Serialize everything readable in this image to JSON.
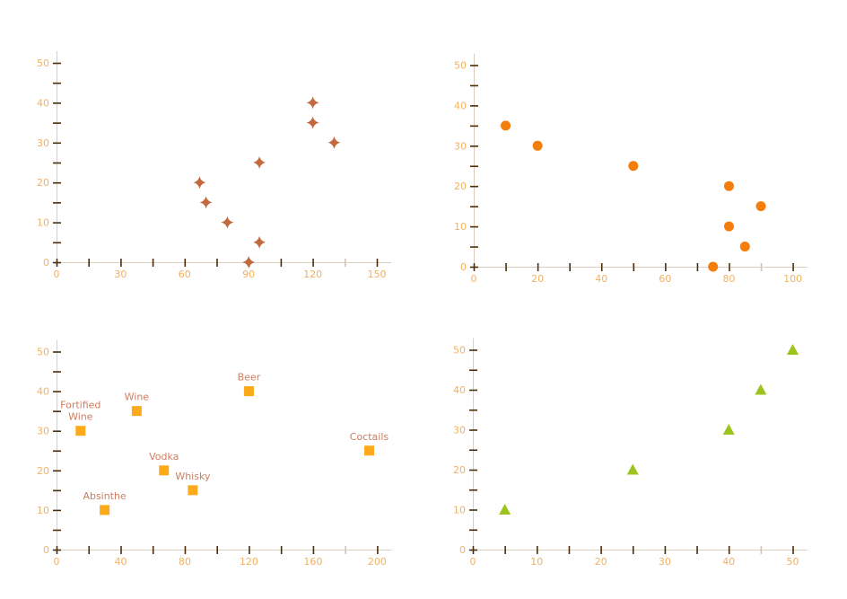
{
  "page": {
    "background": "#ffffff"
  },
  "colors": {
    "axis_line": "#dbcfc4",
    "tick": "#4b2e09",
    "tick_faded": "#cdc3b8",
    "tick_label": "#f2b161",
    "point_label": "#cd7e62",
    "star_marker": "#c2693f",
    "circle_marker": "#f57d0b",
    "square_marker": "#fcaa1a",
    "triangle_marker": "#9cc41c"
  },
  "chart_data": [
    {
      "id": "top-left",
      "type": "scatter",
      "marker": "star4",
      "marker_color": "#c2693f",
      "xlim": [
        0,
        150
      ],
      "ylim": [
        0,
        50
      ],
      "x_tick_step": 15,
      "y_tick_step": 5,
      "x_tick_labels": [
        0,
        30,
        60,
        90,
        120,
        150
      ],
      "y_tick_labels": [
        0,
        10,
        20,
        30,
        40,
        50
      ],
      "grid": false,
      "legend": "none",
      "points": [
        {
          "x": 67,
          "y": 20
        },
        {
          "x": 70,
          "y": 15
        },
        {
          "x": 80,
          "y": 10
        },
        {
          "x": 90,
          "y": 0
        },
        {
          "x": 95,
          "y": 5
        },
        {
          "x": 95,
          "y": 25
        },
        {
          "x": 120,
          "y": 35
        },
        {
          "x": 120,
          "y": 40
        },
        {
          "x": 130,
          "y": 30
        }
      ]
    },
    {
      "id": "top-right",
      "type": "scatter",
      "marker": "circle",
      "marker_color": "#f57d0b",
      "xlim": [
        0,
        100
      ],
      "ylim": [
        0,
        50
      ],
      "x_tick_step": 10,
      "y_tick_step": 5,
      "x_tick_labels": [
        0,
        20,
        40,
        60,
        80,
        100
      ],
      "y_tick_labels": [
        0,
        10,
        20,
        30,
        40,
        50
      ],
      "grid": false,
      "legend": "none",
      "points": [
        {
          "x": 10,
          "y": 35
        },
        {
          "x": 20,
          "y": 30
        },
        {
          "x": 50,
          "y": 25
        },
        {
          "x": 75,
          "y": 0
        },
        {
          "x": 80,
          "y": 10
        },
        {
          "x": 80,
          "y": 20
        },
        {
          "x": 85,
          "y": 5
        },
        {
          "x": 90,
          "y": 15
        }
      ]
    },
    {
      "id": "bottom-left",
      "type": "scatter",
      "marker": "square",
      "marker_color": "#fcaa1a",
      "xlim": [
        0,
        200
      ],
      "ylim": [
        0,
        50
      ],
      "x_tick_step": 20,
      "y_tick_step": 5,
      "x_tick_labels": [
        0,
        40,
        80,
        120,
        160,
        200
      ],
      "y_tick_labels": [
        0,
        10,
        20,
        30,
        40,
        50
      ],
      "grid": false,
      "legend": "none",
      "points": [
        {
          "x": 15,
          "y": 30,
          "label": "Fortified\nWine"
        },
        {
          "x": 30,
          "y": 10,
          "label": "Absinthe"
        },
        {
          "x": 50,
          "y": 35,
          "label": "Wine"
        },
        {
          "x": 67,
          "y": 20,
          "label": "Vodka"
        },
        {
          "x": 85,
          "y": 15,
          "label": "Whisky"
        },
        {
          "x": 120,
          "y": 40,
          "label": "Beer"
        },
        {
          "x": 195,
          "y": 25,
          "label": "Coctails"
        }
      ]
    },
    {
      "id": "bottom-right",
      "type": "scatter",
      "marker": "triangle",
      "marker_color": "#9cc41c",
      "xlim": [
        0,
        50
      ],
      "ylim": [
        0,
        50
      ],
      "x_tick_step": 5,
      "y_tick_step": 5,
      "x_tick_labels": [
        0,
        10,
        20,
        30,
        40,
        50
      ],
      "y_tick_labels": [
        0,
        10,
        20,
        30,
        40,
        50
      ],
      "grid": false,
      "legend": "none",
      "points": [
        {
          "x": 5,
          "y": 10
        },
        {
          "x": 25,
          "y": 20
        },
        {
          "x": 40,
          "y": 30
        },
        {
          "x": 45,
          "y": 40
        },
        {
          "x": 50,
          "y": 50
        }
      ]
    }
  ]
}
